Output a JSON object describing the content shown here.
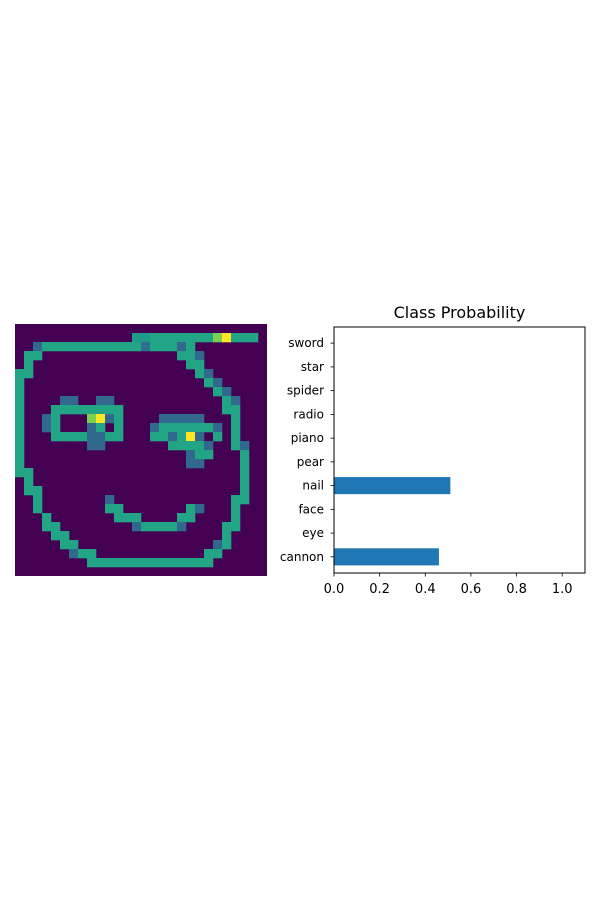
{
  "chart_data": [
    {
      "type": "heatmap",
      "title": "",
      "colormap": "viridis",
      "grid_size": [
        28,
        28
      ],
      "ink_rows": [
        [
          2,
          14,
          "#1e9c89"
        ],
        [
          2,
          15,
          "#1e9c89"
        ],
        [
          2,
          16,
          "#21a585"
        ],
        [
          2,
          17,
          "#21a585"
        ],
        [
          2,
          18,
          "#21a585"
        ],
        [
          2,
          19,
          "#21a585"
        ],
        [
          2,
          20,
          "#21a585"
        ],
        [
          2,
          21,
          "#21a585"
        ],
        [
          2,
          22,
          "#21a585"
        ],
        [
          2,
          23,
          "#7ad151"
        ],
        [
          2,
          24,
          "#fde725"
        ],
        [
          2,
          25,
          "#21a585"
        ],
        [
          2,
          26,
          "#21a585"
        ],
        [
          2,
          27,
          "#21a585"
        ],
        [
          3,
          3,
          "#31688e"
        ],
        [
          3,
          4,
          "#21a585"
        ],
        [
          3,
          5,
          "#21a585"
        ],
        [
          3,
          6,
          "#21a585"
        ],
        [
          3,
          7,
          "#21a585"
        ],
        [
          3,
          8,
          "#21a585"
        ],
        [
          3,
          9,
          "#21a585"
        ],
        [
          3,
          10,
          "#21a585"
        ],
        [
          3,
          11,
          "#21a585"
        ],
        [
          3,
          12,
          "#21a585"
        ],
        [
          3,
          13,
          "#21a585"
        ],
        [
          3,
          14,
          "#21a585"
        ],
        [
          3,
          15,
          "#2c728e"
        ],
        [
          3,
          16,
          "#21a585"
        ],
        [
          3,
          17,
          "#21a585"
        ],
        [
          3,
          18,
          "#21a585"
        ],
        [
          3,
          19,
          "#31688e"
        ],
        [
          3,
          20,
          "#21a585"
        ],
        [
          4,
          2,
          "#21a585"
        ],
        [
          4,
          3,
          "#21a585"
        ],
        [
          4,
          19,
          "#21a585"
        ],
        [
          4,
          20,
          "#21a585"
        ],
        [
          4,
          21,
          "#31688e"
        ],
        [
          5,
          2,
          "#21a585"
        ],
        [
          5,
          20,
          "#21a585"
        ],
        [
          5,
          21,
          "#21a585"
        ],
        [
          6,
          1,
          "#21a585"
        ],
        [
          6,
          2,
          "#21a585"
        ],
        [
          6,
          21,
          "#21a585"
        ],
        [
          6,
          22,
          "#31688e"
        ],
        [
          7,
          1,
          "#21a585"
        ],
        [
          7,
          22,
          "#21a585"
        ],
        [
          7,
          23,
          "#31688e"
        ],
        [
          8,
          1,
          "#21a585"
        ],
        [
          8,
          23,
          "#21a585"
        ],
        [
          8,
          24,
          "#31688e"
        ],
        [
          9,
          1,
          "#21a585"
        ],
        [
          9,
          6,
          "#31688e"
        ],
        [
          9,
          7,
          "#31688e"
        ],
        [
          9,
          10,
          "#31688e"
        ],
        [
          9,
          11,
          "#31688e"
        ],
        [
          9,
          24,
          "#21a585"
        ],
        [
          9,
          25,
          "#31688e"
        ],
        [
          10,
          1,
          "#21a585"
        ],
        [
          10,
          5,
          "#21a585"
        ],
        [
          10,
          6,
          "#21a585"
        ],
        [
          10,
          7,
          "#21a585"
        ],
        [
          10,
          8,
          "#21a585"
        ],
        [
          10,
          9,
          "#21a585"
        ],
        [
          10,
          10,
          "#21a585"
        ],
        [
          10,
          11,
          "#21a585"
        ],
        [
          10,
          12,
          "#21a585"
        ],
        [
          10,
          24,
          "#21a585"
        ],
        [
          10,
          25,
          "#21a585"
        ],
        [
          11,
          1,
          "#21a585"
        ],
        [
          11,
          4,
          "#31688e"
        ],
        [
          11,
          5,
          "#21a585"
        ],
        [
          11,
          9,
          "#7ad151"
        ],
        [
          11,
          10,
          "#fde725"
        ],
        [
          11,
          11,
          "#31688e"
        ],
        [
          11,
          12,
          "#21a585"
        ],
        [
          11,
          17,
          "#31688e"
        ],
        [
          11,
          18,
          "#31688e"
        ],
        [
          11,
          19,
          "#31688e"
        ],
        [
          11,
          20,
          "#31688e"
        ],
        [
          11,
          21,
          "#31688e"
        ],
        [
          11,
          25,
          "#21a585"
        ],
        [
          12,
          1,
          "#21a585"
        ],
        [
          12,
          4,
          "#31688e"
        ],
        [
          12,
          5,
          "#21a585"
        ],
        [
          12,
          9,
          "#31688e"
        ],
        [
          12,
          10,
          "#21a585"
        ],
        [
          12,
          12,
          "#21a585"
        ],
        [
          12,
          16,
          "#31688e"
        ],
        [
          12,
          17,
          "#21a585"
        ],
        [
          12,
          18,
          "#21a585"
        ],
        [
          12,
          19,
          "#21a585"
        ],
        [
          12,
          20,
          "#21a585"
        ],
        [
          12,
          21,
          "#21a585"
        ],
        [
          12,
          22,
          "#21a585"
        ],
        [
          12,
          23,
          "#31688e"
        ],
        [
          12,
          25,
          "#21a585"
        ],
        [
          13,
          1,
          "#21a585"
        ],
        [
          13,
          5,
          "#21a585"
        ],
        [
          13,
          6,
          "#21a585"
        ],
        [
          13,
          7,
          "#21a585"
        ],
        [
          13,
          8,
          "#21a585"
        ],
        [
          13,
          9,
          "#31688e"
        ],
        [
          13,
          10,
          "#31688e"
        ],
        [
          13,
          11,
          "#21a585"
        ],
        [
          13,
          12,
          "#21a585"
        ],
        [
          13,
          16,
          "#21a585"
        ],
        [
          13,
          17,
          "#21a585"
        ],
        [
          13,
          18,
          "#31688e"
        ],
        [
          13,
          19,
          "#21a585"
        ],
        [
          13,
          20,
          "#fde725"
        ],
        [
          13,
          21,
          "#31688e"
        ],
        [
          13,
          23,
          "#21a585"
        ],
        [
          13,
          25,
          "#21a585"
        ],
        [
          14,
          1,
          "#21a585"
        ],
        [
          14,
          9,
          "#31688e"
        ],
        [
          14,
          10,
          "#31688e"
        ],
        [
          14,
          18,
          "#21a585"
        ],
        [
          14,
          19,
          "#21a585"
        ],
        [
          14,
          20,
          "#21a585"
        ],
        [
          14,
          21,
          "#21a585"
        ],
        [
          14,
          22,
          "#31688e"
        ],
        [
          14,
          25,
          "#21a585"
        ],
        [
          14,
          26,
          "#31688e"
        ],
        [
          15,
          1,
          "#21a585"
        ],
        [
          15,
          20,
          "#31688e"
        ],
        [
          15,
          21,
          "#21a585"
        ],
        [
          15,
          22,
          "#21a585"
        ],
        [
          15,
          26,
          "#21a585"
        ],
        [
          16,
          1,
          "#21a585"
        ],
        [
          16,
          20,
          "#31688e"
        ],
        [
          16,
          21,
          "#31688e"
        ],
        [
          16,
          26,
          "#21a585"
        ],
        [
          17,
          1,
          "#21a585"
        ],
        [
          17,
          2,
          "#21a585"
        ],
        [
          17,
          26,
          "#21a585"
        ],
        [
          18,
          2,
          "#21a585"
        ],
        [
          18,
          26,
          "#21a585"
        ],
        [
          19,
          2,
          "#21a585"
        ],
        [
          19,
          3,
          "#21a585"
        ],
        [
          19,
          26,
          "#21a585"
        ],
        [
          20,
          3,
          "#21a585"
        ],
        [
          20,
          11,
          "#31688e"
        ],
        [
          20,
          25,
          "#21a585"
        ],
        [
          20,
          26,
          "#21a585"
        ],
        [
          21,
          3,
          "#21a585"
        ],
        [
          21,
          11,
          "#21a585"
        ],
        [
          21,
          12,
          "#21a585"
        ],
        [
          21,
          20,
          "#21a585"
        ],
        [
          21,
          21,
          "#31688e"
        ],
        [
          21,
          25,
          "#21a585"
        ],
        [
          22,
          4,
          "#21a585"
        ],
        [
          22,
          12,
          "#21a585"
        ],
        [
          22,
          13,
          "#21a585"
        ],
        [
          22,
          14,
          "#21a585"
        ],
        [
          22,
          19,
          "#21a585"
        ],
        [
          22,
          20,
          "#21a585"
        ],
        [
          22,
          25,
          "#21a585"
        ],
        [
          23,
          4,
          "#21a585"
        ],
        [
          23,
          5,
          "#21a585"
        ],
        [
          23,
          14,
          "#31688e"
        ],
        [
          23,
          15,
          "#21a585"
        ],
        [
          23,
          16,
          "#21a585"
        ],
        [
          23,
          17,
          "#21a585"
        ],
        [
          23,
          18,
          "#21a585"
        ],
        [
          23,
          19,
          "#31688e"
        ],
        [
          23,
          24,
          "#21a585"
        ],
        [
          23,
          25,
          "#21a585"
        ],
        [
          24,
          5,
          "#21a585"
        ],
        [
          24,
          6,
          "#21a585"
        ],
        [
          24,
          24,
          "#21a585"
        ],
        [
          25,
          6,
          "#21a585"
        ],
        [
          25,
          7,
          "#21a585"
        ],
        [
          25,
          23,
          "#31688e"
        ],
        [
          25,
          24,
          "#21a585"
        ],
        [
          26,
          7,
          "#31688e"
        ],
        [
          26,
          8,
          "#21a585"
        ],
        [
          26,
          9,
          "#21a585"
        ],
        [
          26,
          22,
          "#21a585"
        ],
        [
          26,
          23,
          "#21a585"
        ],
        [
          27,
          9,
          "#21a585"
        ],
        [
          27,
          10,
          "#21a585"
        ],
        [
          27,
          11,
          "#21a585"
        ],
        [
          27,
          12,
          "#21a585"
        ],
        [
          27,
          13,
          "#21a585"
        ],
        [
          27,
          14,
          "#21a585"
        ],
        [
          27,
          15,
          "#21a585"
        ],
        [
          27,
          16,
          "#21a585"
        ],
        [
          27,
          17,
          "#21a585"
        ],
        [
          27,
          18,
          "#21a585"
        ],
        [
          27,
          19,
          "#21a585"
        ],
        [
          27,
          20,
          "#21a585"
        ],
        [
          27,
          21,
          "#21a585"
        ],
        [
          27,
          22,
          "#21a585"
        ]
      ],
      "background_color": "#440154"
    },
    {
      "type": "bar",
      "orientation": "horizontal",
      "title": "Class Probability",
      "categories": [
        "cannon",
        "eye",
        "face",
        "nail",
        "pear",
        "piano",
        "radio",
        "spider",
        "star",
        "sword"
      ],
      "values": [
        0.46,
        0.0,
        0.0,
        0.51,
        0.0,
        0.0,
        0.0,
        0.0,
        0.0,
        0.0
      ],
      "xlim": [
        0,
        1.1
      ],
      "xticks": [
        "0.0",
        "0.2",
        "0.4",
        "0.6",
        "0.8",
        "1.0"
      ],
      "bar_color": "#1f77b4",
      "grid": false
    }
  ]
}
